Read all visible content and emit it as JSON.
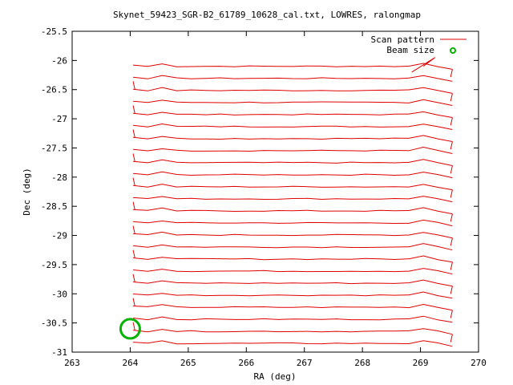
{
  "chart_data": {
    "type": "line",
    "title": "Skynet_59423_SGR-B2_61789_10628_cal.txt, LOWRES, ralongmap",
    "xlabel": "RA (deg)",
    "ylabel": "Dec (deg)",
    "xlim": [
      263,
      270
    ],
    "ylim": [
      -31,
      -25.5
    ],
    "x_ticks": [
      "263",
      "264",
      "265",
      "266",
      "267",
      "268",
      "269",
      "270"
    ],
    "y_ticks": [
      "-25.5",
      "-26",
      "-26.5",
      "-27",
      "-27.5",
      "-28",
      "-28.5",
      "-29",
      "-29.5",
      "-30",
      "-30.5",
      "-31"
    ],
    "grid": false,
    "legend_position": "top-right",
    "legend": [
      {
        "label": "Scan pattern",
        "color": "#e00000",
        "style": "line"
      },
      {
        "label": "Beam size",
        "color": "#00b400",
        "style": "circle"
      }
    ],
    "scan_pattern": {
      "ra_start": 264.05,
      "ra_end": 269.55,
      "dec_start": -26.1,
      "dec_end": -30.85,
      "num_scans": 24
    },
    "beam": {
      "ra": 264.0,
      "dec": -30.6,
      "diameter_deg": 0.33
    }
  }
}
